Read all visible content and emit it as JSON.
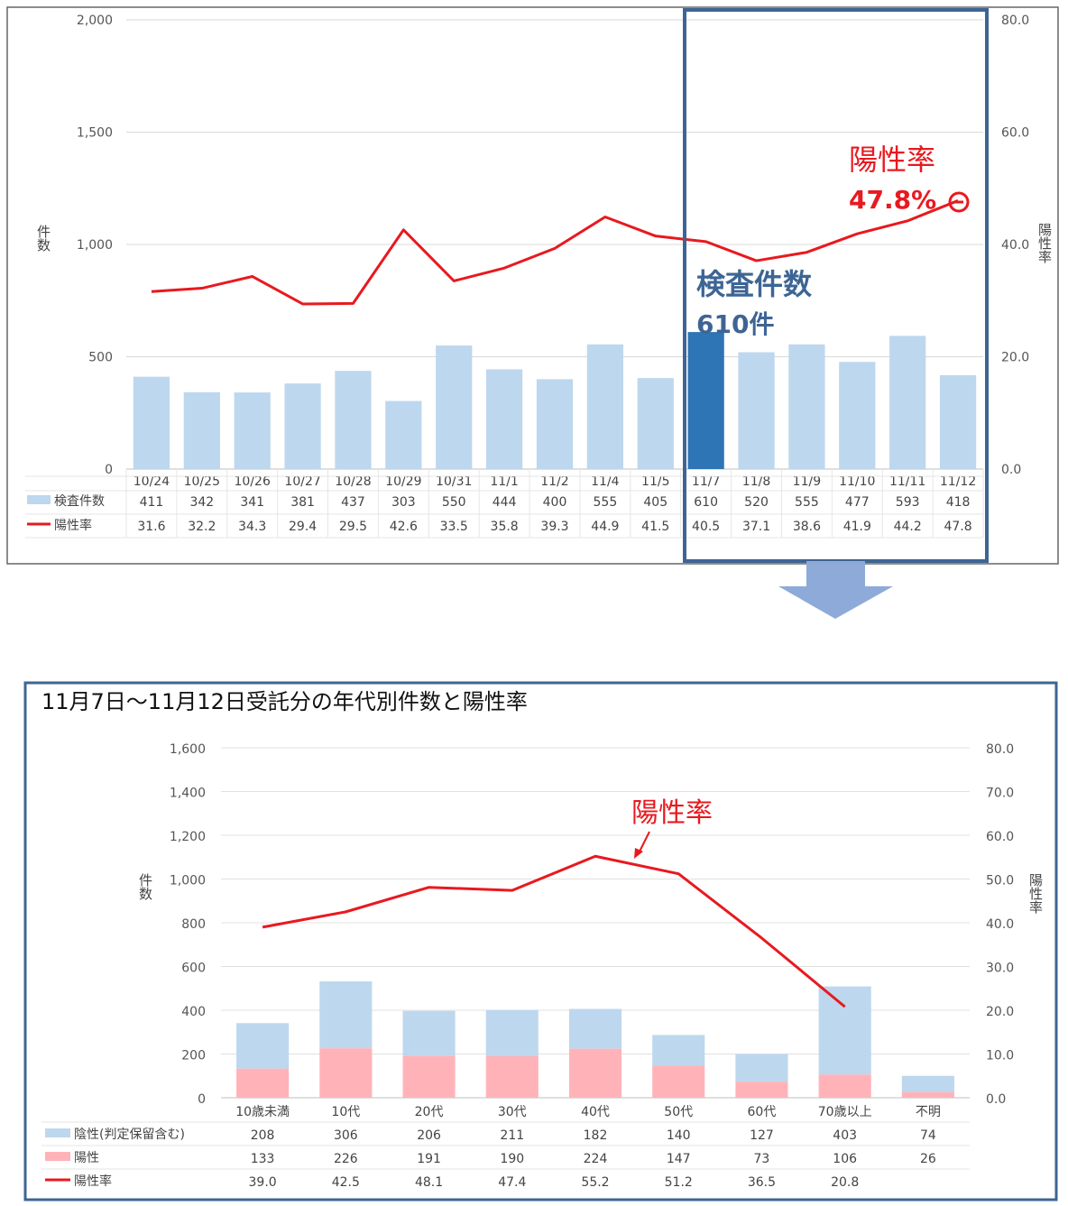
{
  "chart_data": [
    {
      "type": "bar",
      "categories": [
        "10/24",
        "10/25",
        "10/26",
        "10/27",
        "10/28",
        "10/29",
        "10/31",
        "11/1",
        "11/2",
        "11/4",
        "11/5",
        "11/7",
        "11/8",
        "11/9",
        "11/10",
        "11/11",
        "11/12"
      ],
      "series": [
        {
          "name": "検査件数",
          "type": "bar",
          "axis": "left",
          "values": [
            411,
            342,
            341,
            381,
            437,
            303,
            550,
            444,
            400,
            555,
            405,
            610,
            520,
            555,
            477,
            593,
            418
          ]
        },
        {
          "name": "陽性率",
          "type": "line",
          "axis": "right",
          "values": [
            31.6,
            32.2,
            34.3,
            29.4,
            29.5,
            42.6,
            33.5,
            35.8,
            39.3,
            44.9,
            41.5,
            40.5,
            37.1,
            38.6,
            41.9,
            44.2,
            47.8
          ]
        }
      ],
      "ylabel": "件数",
      "y2label": "陽性率",
      "ylim": [
        0,
        2000
      ],
      "y2lim": [
        0,
        80
      ],
      "yticks": [
        "2,000",
        "1,500",
        "1,000",
        "500",
        "0"
      ],
      "y2ticks": [
        "80.0",
        "60.0",
        "40.0",
        "20.0",
        "0.0"
      ],
      "highlight_index": 11,
      "annotations": {
        "rate_label": "陽性率",
        "rate_value": "47.8%",
        "count_label": "検査件数",
        "count_value": "610件"
      },
      "colors": {
        "bar": "#bdd7ee",
        "bar_highlight": "#2e75b6",
        "line": "#e8191f",
        "frame": "#3d6594",
        "arrow": "#8eaad8",
        "annotation_red": "#e8191f",
        "annotation_blue": "#3d6594"
      },
      "grid": true,
      "legend": "data-table"
    },
    {
      "type": "bar",
      "title": "11月7日～11月12日受託分の年代別件数と陽性率",
      "categories": [
        "10歳未満",
        "10代",
        "20代",
        "30代",
        "40代",
        "50代",
        "60代",
        "70歳以上",
        "不明"
      ],
      "series": [
        {
          "name": "陰性(判定保留含む)",
          "type": "bar",
          "stack": "total",
          "axis": "left",
          "values": [
            208,
            306,
            206,
            211,
            182,
            140,
            127,
            403,
            74
          ]
        },
        {
          "name": "陽性",
          "type": "bar",
          "stack": "total",
          "axis": "left",
          "values": [
            133,
            226,
            191,
            190,
            224,
            147,
            73,
            106,
            26
          ]
        },
        {
          "name": "陽性率",
          "type": "line",
          "axis": "right",
          "values": [
            39.0,
            42.5,
            48.1,
            47.4,
            55.2,
            51.2,
            36.5,
            20.8,
            null
          ]
        }
      ],
      "table_rows": [
        [
          "208",
          "306",
          "206",
          "211",
          "182",
          "140",
          "127",
          "403",
          "74"
        ],
        [
          "133",
          "226",
          "191",
          "190",
          "224",
          "147",
          "73",
          "106",
          "26"
        ],
        [
          "39.0",
          "42.5",
          "48.1",
          "47.4",
          "55.2",
          "51.2",
          "36.5",
          "20.8",
          ""
        ]
      ],
      "ylabel": "件数",
      "y2label": "陽性率",
      "ylim": [
        0,
        1600
      ],
      "y2lim": [
        0,
        80
      ],
      "yticks": [
        "1,600",
        "1,400",
        "1,200",
        "1,000",
        "800",
        "600",
        "400",
        "200",
        "0"
      ],
      "y2ticks": [
        "80.0",
        "70.0",
        "60.0",
        "50.0",
        "40.0",
        "30.0",
        "20.0",
        "10.0",
        "0.0"
      ],
      "annotations": {
        "rate_label": "陽性率"
      },
      "colors": {
        "negative": "#bdd7ee",
        "positive": "#ffb3b8",
        "line": "#e8191f",
        "frame": "#3d6594"
      },
      "grid": true,
      "legend": "data-table"
    }
  ]
}
